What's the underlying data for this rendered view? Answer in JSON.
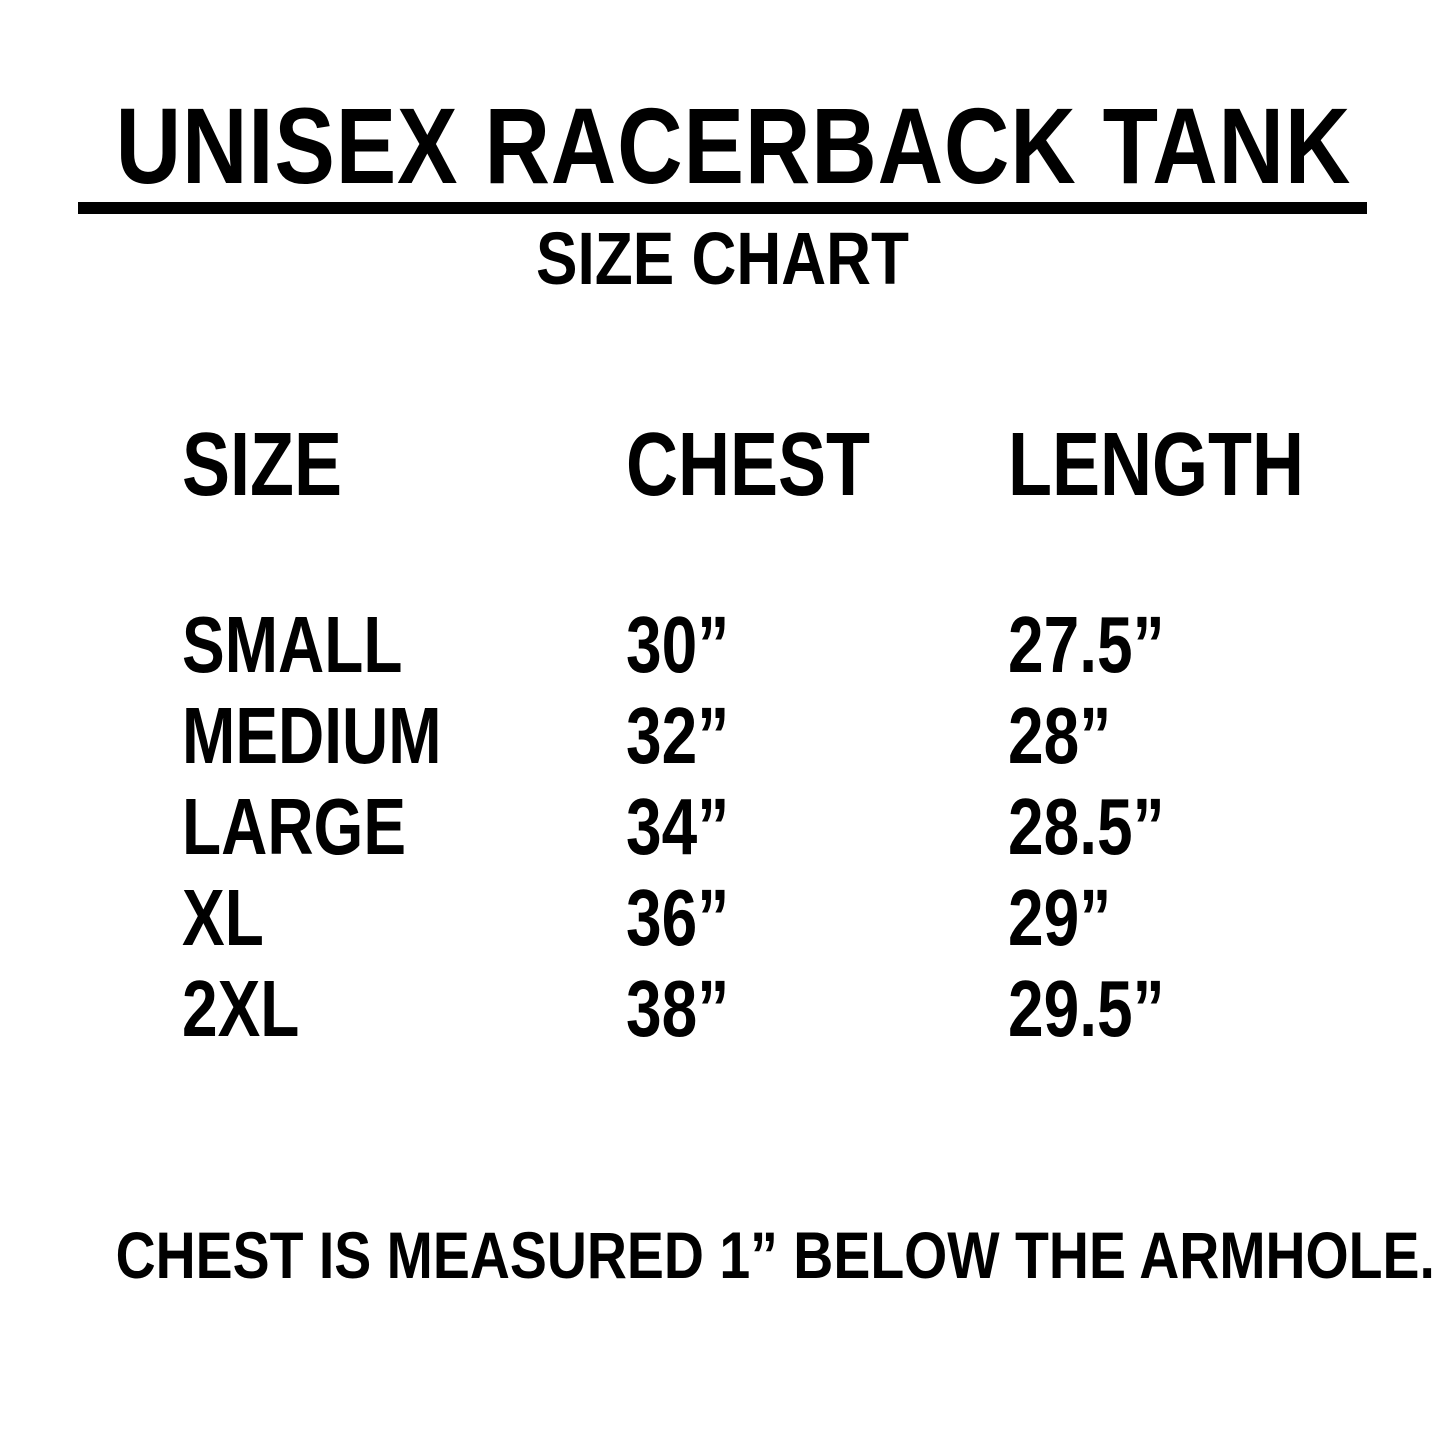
{
  "page": {
    "background_color": "#ffffff",
    "text_color": "#000000"
  },
  "header": {
    "title": "UNISEX RACERBACK TANK",
    "subtitle": "SIZE CHART"
  },
  "chart_data": {
    "type": "table",
    "title": "UNISEX RACERBACK TANK",
    "subtitle": "SIZE CHART",
    "columns": [
      "SIZE",
      "CHEST",
      "LENGTH"
    ],
    "rows": [
      [
        "SMALL",
        "30”",
        "27.5”"
      ],
      [
        "MEDIUM",
        "32”",
        "28”"
      ],
      [
        "LARGE",
        "34”",
        "28.5”"
      ],
      [
        "XL",
        "36”",
        "29”"
      ],
      [
        "2XL",
        "38”",
        "29.5”"
      ]
    ],
    "units": "inches",
    "layout": {
      "columns_left_aligned": true,
      "gridlines": false
    }
  },
  "footnote": "CHEST IS MEASURED 1” BELOW THE ARMHOLE."
}
